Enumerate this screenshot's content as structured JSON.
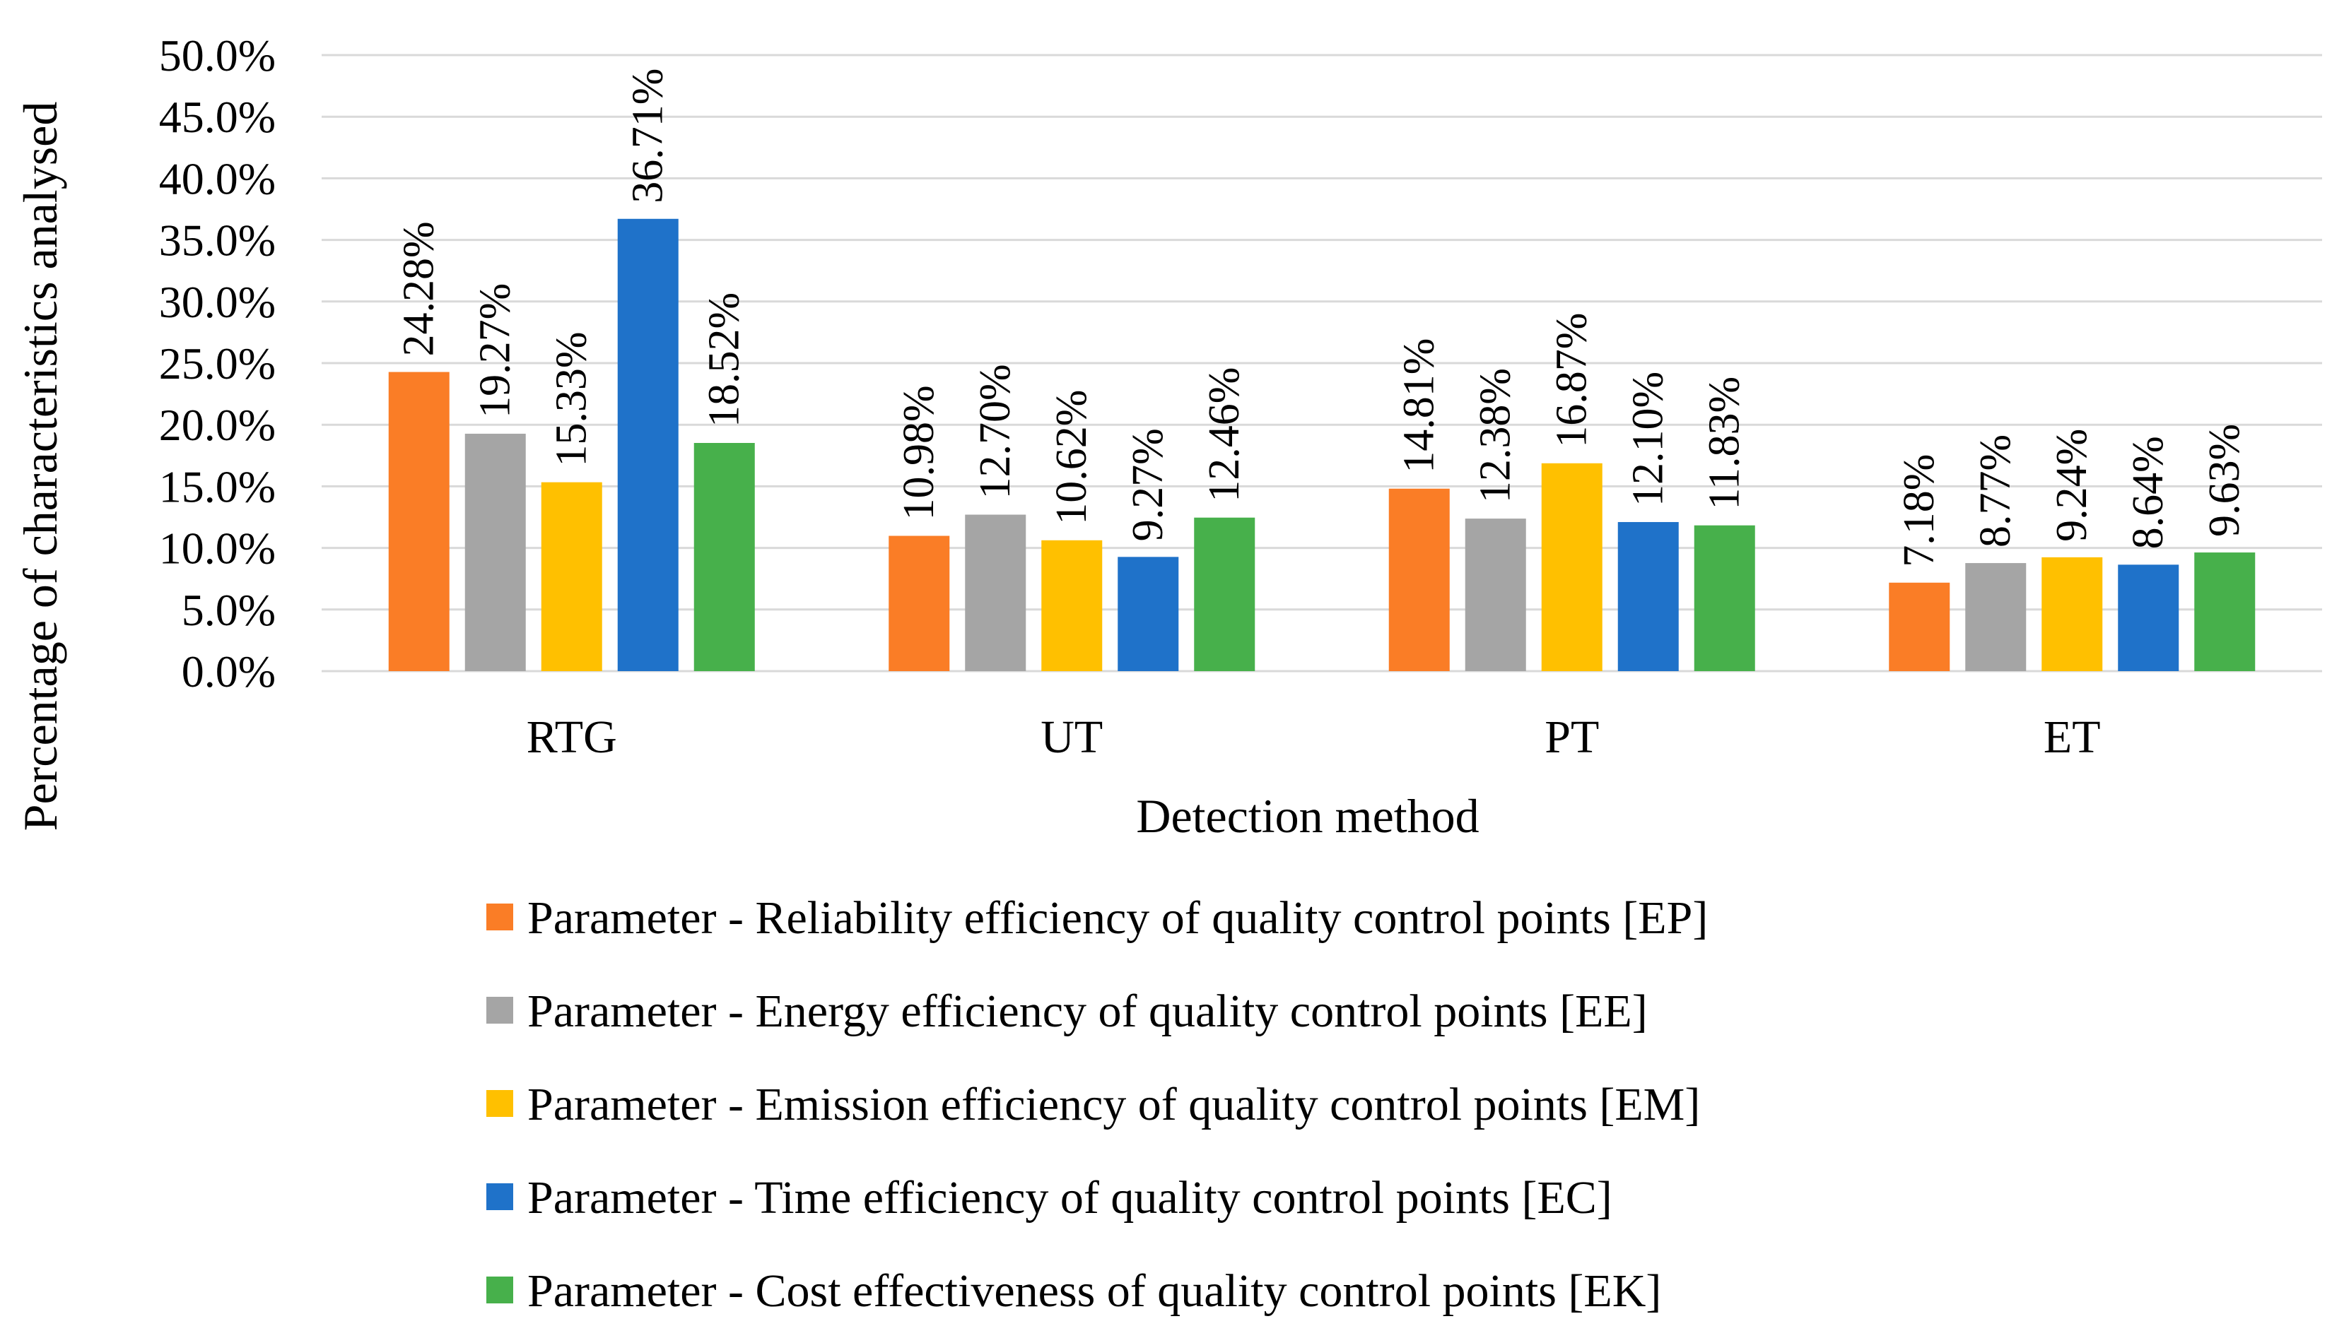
{
  "chart_data": {
    "type": "bar",
    "title": "",
    "xlabel": "Detection method",
    "ylabel": "Percentage of characteristics analysed",
    "ylim": [
      0,
      50
    ],
    "ytick_step": 5,
    "ytick_labels": [
      "0.0%",
      "5.0%",
      "10.0%",
      "15.0%",
      "20.0%",
      "25.0%",
      "30.0%",
      "35.0%",
      "40.0%",
      "45.0%",
      "50.0%"
    ],
    "grid": true,
    "legend_position": "bottom",
    "categories": [
      "RTG",
      "UT",
      "PT",
      "ET"
    ],
    "series": [
      {
        "name": "Parameter - Reliability efficiency of quality control points [EP]",
        "color": "#FA7D26",
        "values": [
          24.28,
          10.98,
          14.81,
          7.18
        ],
        "labels": [
          "24.28%",
          "10.98%",
          "14.81%",
          "7.18%"
        ]
      },
      {
        "name": "Parameter - Energy efficiency of quality control points [EE]",
        "color": "#A5A5A5",
        "values": [
          19.27,
          12.7,
          12.38,
          8.77
        ],
        "labels": [
          "19.27%",
          "12.70%",
          "12.38%",
          "8.77%"
        ]
      },
      {
        "name": "Parameter - Emission efficiency of quality control points [EM]",
        "color": "#FFC000",
        "values": [
          15.33,
          10.62,
          16.87,
          9.24
        ],
        "labels": [
          "15.33%",
          "10.62%",
          "16.87%",
          "9.24%"
        ]
      },
      {
        "name": "Parameter - Time efficiency of quality control points [EC]",
        "color": "#1F72C9",
        "values": [
          36.71,
          9.27,
          12.1,
          8.64
        ],
        "labels": [
          "36.71%",
          "9.27%",
          "12.10%",
          "8.64%"
        ]
      },
      {
        "name": "Parameter - Cost effectiveness of quality control points [EK]",
        "color": "#47B04B",
        "values": [
          18.52,
          12.46,
          11.83,
          9.63
        ],
        "labels": [
          "18.52%",
          "12.46%",
          "11.83%",
          "9.63%"
        ]
      }
    ]
  }
}
